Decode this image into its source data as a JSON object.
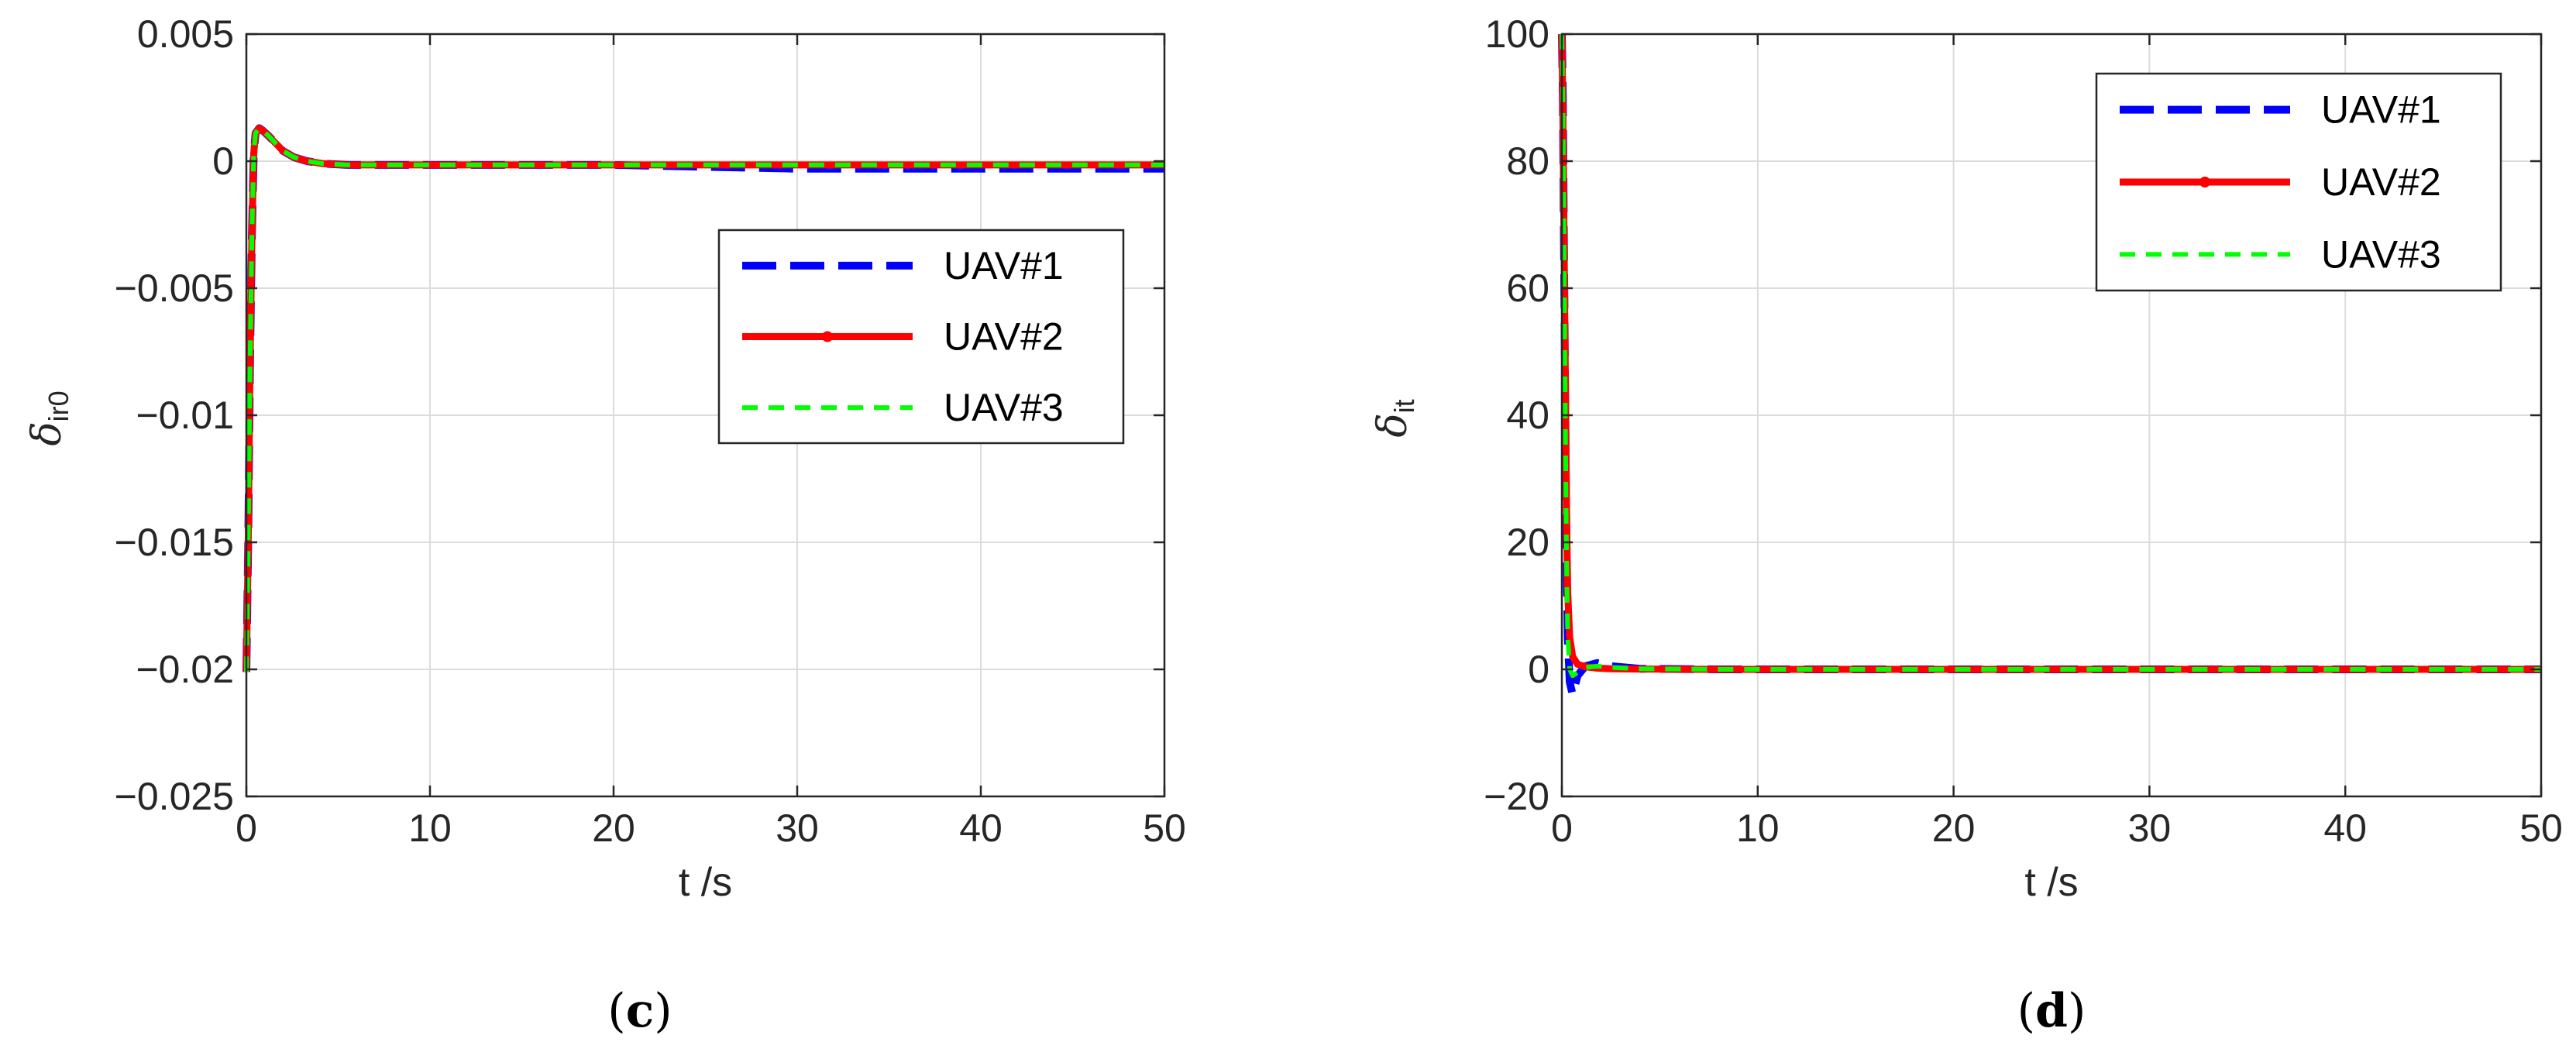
{
  "chart_data": [
    {
      "type": "line",
      "caption": "(c)",
      "xlabel": "t /s",
      "ylabel": "δ",
      "ylabel_sub": "ir0",
      "xlim": [
        0,
        50
      ],
      "ylim": [
        -0.025,
        0.005
      ],
      "xticks": [
        0,
        10,
        20,
        30,
        40,
        50
      ],
      "xtick_labels": [
        "0",
        "10",
        "20",
        "30",
        "40",
        "50"
      ],
      "yticks": [
        0.005,
        0,
        -0.005,
        -0.01,
        -0.015,
        -0.02,
        -0.025
      ],
      "ytick_labels": [
        "0.005",
        "0",
        "−0.005",
        "−0.01",
        "−0.015",
        "−0.02",
        "−0.025"
      ],
      "grid": true,
      "legend": "center-right",
      "series": [
        {
          "name": "UAV#1",
          "color": "#0000ff",
          "style": "dash-dot-thick",
          "x": [
            0,
            0.1,
            0.2,
            0.3,
            0.4,
            0.5,
            0.7,
            0.9,
            1.2,
            1.6,
            2.0,
            2.6,
            3.3,
            4.2,
            5.5,
            8,
            12,
            20,
            30,
            40,
            50
          ],
          "y": [
            -0.0201,
            -0.015,
            -0.008,
            -0.003,
            0.0003,
            0.0011,
            0.0013,
            0.0012,
            0.001,
            0.0007,
            0.0004,
            0.00015,
            0.0,
            -0.0001,
            -0.00015,
            -0.00015,
            -0.00015,
            -0.00015,
            -0.0003,
            -0.0003,
            -0.0003
          ]
        },
        {
          "name": "UAV#2",
          "color": "#ff0000",
          "style": "solid-dot",
          "x": [
            0,
            0.1,
            0.2,
            0.3,
            0.4,
            0.5,
            0.7,
            0.9,
            1.2,
            1.6,
            2.0,
            2.6,
            3.3,
            4.2,
            5.5,
            8,
            12,
            20,
            30,
            40,
            50
          ],
          "y": [
            -0.0201,
            -0.015,
            -0.008,
            -0.003,
            0.0003,
            0.0011,
            0.0013,
            0.0012,
            0.001,
            0.0007,
            0.0004,
            0.00015,
            0.0,
            -0.0001,
            -0.00015,
            -0.00015,
            -0.00015,
            -0.00015,
            -0.00015,
            -0.00015,
            -0.00015
          ]
        },
        {
          "name": "UAV#3",
          "color": "#00ff00",
          "style": "dashed",
          "x": [
            0,
            0.1,
            0.2,
            0.3,
            0.4,
            0.5,
            0.7,
            0.9,
            1.2,
            1.6,
            2.0,
            2.6,
            3.3,
            4.2,
            5.5,
            8,
            12,
            20,
            30,
            40,
            50
          ],
          "y": [
            -0.0201,
            -0.015,
            -0.008,
            -0.003,
            0.0003,
            0.0011,
            0.0013,
            0.0012,
            0.001,
            0.0007,
            0.0004,
            0.00015,
            0.0,
            -0.0001,
            -0.00015,
            -0.00015,
            -0.00015,
            -0.00015,
            -0.00015,
            -0.00015,
            -0.00015
          ]
        }
      ]
    },
    {
      "type": "line",
      "caption": "(d)",
      "xlabel": "t /s",
      "ylabel": "δ",
      "ylabel_sub": "it",
      "xlim": [
        0,
        50
      ],
      "ylim": [
        -20,
        100
      ],
      "xticks": [
        0,
        10,
        20,
        30,
        40,
        50
      ],
      "xtick_labels": [
        "0",
        "10",
        "20",
        "30",
        "40",
        "50"
      ],
      "yticks": [
        100,
        80,
        60,
        40,
        20,
        0,
        -20
      ],
      "ytick_labels": [
        "100",
        "80",
        "60",
        "40",
        "20",
        "0",
        "−20"
      ],
      "grid": true,
      "legend": "top-right",
      "series": [
        {
          "name": "UAV#1",
          "color": "#0000ff",
          "style": "dash-dot-thick",
          "x": [
            0,
            0.05,
            0.1,
            0.15,
            0.2,
            0.25,
            0.3,
            0.4,
            0.55,
            0.8,
            1.2,
            1.8,
            2.5,
            4,
            8,
            20,
            50
          ],
          "y": [
            100,
            90,
            70,
            50,
            30,
            15,
            5,
            -2,
            -4,
            -1,
            0.5,
            1,
            0.5,
            0.1,
            0,
            0,
            0
          ]
        },
        {
          "name": "UAV#2",
          "color": "#ff0000",
          "style": "solid-dot",
          "x": [
            0,
            0.05,
            0.1,
            0.15,
            0.2,
            0.25,
            0.3,
            0.4,
            0.55,
            0.8,
            1.2,
            1.8,
            2.5,
            4,
            8,
            20,
            50
          ],
          "y": [
            100,
            88,
            72,
            55,
            38,
            22,
            12,
            5,
            2,
            0.8,
            0.4,
            0.2,
            0.1,
            0.05,
            0,
            0,
            0
          ]
        },
        {
          "name": "UAV#3",
          "color": "#00ff00",
          "style": "dashed",
          "x": [
            0,
            0.05,
            0.1,
            0.15,
            0.2,
            0.25,
            0.3,
            0.4,
            0.55,
            0.8,
            1.2,
            1.8,
            2.5,
            4,
            8,
            20,
            50
          ],
          "y": [
            100,
            90,
            70,
            50,
            30,
            15,
            5,
            0,
            -1,
            -0.5,
            0.3,
            0.5,
            0.3,
            0.1,
            0,
            0,
            0
          ]
        }
      ]
    }
  ]
}
